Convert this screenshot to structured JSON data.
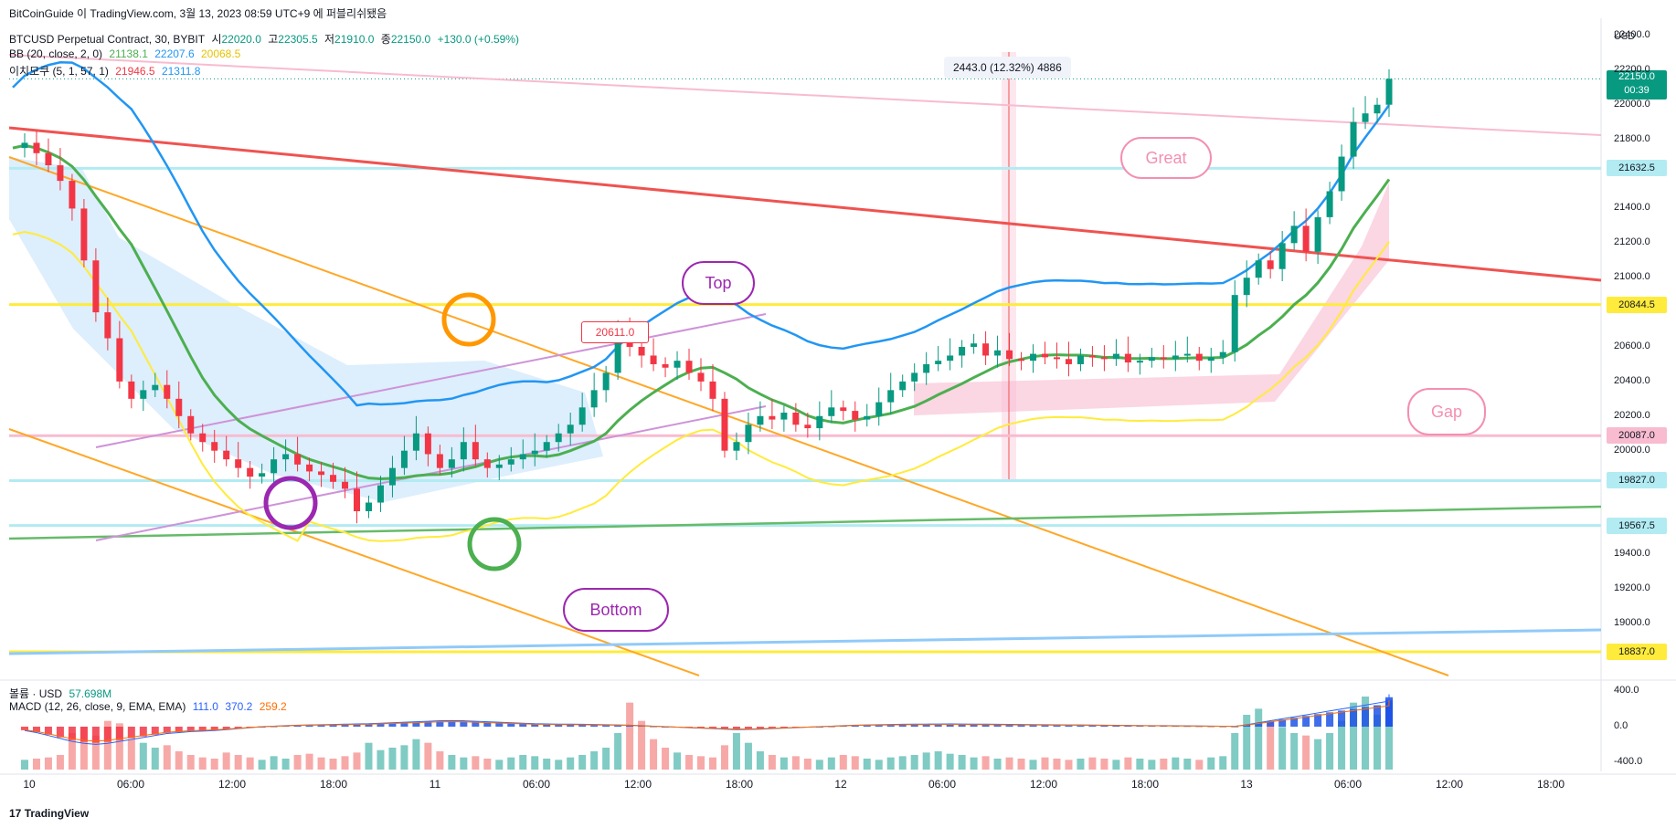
{
  "header": {
    "publish_line": "BitCoinGuide 이 TradingView.com, 3월 13, 2023 08:59 UTC+9 에 퍼블리쉬됐음",
    "symbol_line": {
      "name": "BTCUSD Perpetual Contract, 30, BYBIT",
      "open_label": "시",
      "open": "22020.0",
      "high_label": "고",
      "high": "22305.5",
      "low_label": "저",
      "low": "21910.0",
      "close_label": "종",
      "close": "22150.0",
      "change": "+130.0 (+0.59%)"
    },
    "bb_line": {
      "name": "BB (20, close, 2, 0)",
      "v1": "21138.1",
      "v2": "22207.6",
      "v3": "20068.5"
    },
    "ichimoku_line": {
      "name": "이치모쿠 (5, 1, 57, 1)",
      "v1": "21946.5",
      "v2": "21311.8"
    },
    "volume_line": {
      "name": "볼륨 · USD",
      "value": "57.698M"
    },
    "macd_line": {
      "name": "MACD (12, 26, close, 9, EMA, EMA)",
      "v1": "111.0",
      "v2": "370.2",
      "v3": "259.2"
    }
  },
  "currency": "USD",
  "measure_label": "2443.0 (12.32%) 4886",
  "price_badges": [
    {
      "value": "22150.0",
      "sub": "00:39",
      "bg": "#089981",
      "color": "#ffffff"
    },
    {
      "value": "21632.5",
      "bg": "#b2ebf2",
      "color": "#131722"
    },
    {
      "value": "20844.5",
      "bg": "#ffeb3b",
      "color": "#131722"
    },
    {
      "value": "20087.0",
      "bg": "#f8bbd0",
      "color": "#131722"
    },
    {
      "value": "19827.0",
      "bg": "#b2ebf2",
      "color": "#131722"
    },
    {
      "value": "19567.5",
      "bg": "#b2ebf2",
      "color": "#131722"
    },
    {
      "value": "18837.0",
      "bg": "#ffeb3b",
      "color": "#131722"
    }
  ],
  "annotations": {
    "great": "Great",
    "gap": "Gap",
    "top": "Top",
    "bottom": "Bottom",
    "price_tag": "20611.0"
  },
  "brand": "TradingView",
  "colors": {
    "bb_basis": "#4caf50",
    "bb_upper": "#2196f3",
    "bb_lower": "#ffeb3b",
    "up_candle": "#089981",
    "down_candle": "#f23645",
    "cloud_bear": "#bbdefb",
    "cloud_bull": "#f8bbd0",
    "macd_line": "#2962ff",
    "signal_line": "#ff6d00"
  },
  "chart_data": {
    "type": "candlestick",
    "y_ticks": [
      22400,
      22200,
      22000,
      21800,
      21400,
      21200,
      21000,
      20600,
      20400,
      20200,
      20000,
      19400,
      19200,
      19000
    ],
    "ylim": [
      18700,
      22500
    ],
    "x_ticks": [
      "10",
      "06:00",
      "12:00",
      "18:00",
      "11",
      "06:00",
      "12:00",
      "18:00",
      "12",
      "06:00",
      "12:00",
      "18:00",
      "13",
      "06:00",
      "12:00",
      "18:00"
    ],
    "macd_ticks": [
      "400.0",
      "0.0",
      "-400.0"
    ],
    "macd_ylim": [
      -450,
      450
    ],
    "close_path": [
      21750,
      21780,
      21720,
      21650,
      21560,
      21400,
      21100,
      20800,
      20650,
      20400,
      20300,
      20350,
      20380,
      20300,
      20200,
      20100,
      20050,
      20000,
      19950,
      19900,
      19850,
      19870,
      19950,
      19980,
      19920,
      19880,
      19860,
      19820,
      19780,
      19650,
      19700,
      19800,
      19900,
      20000,
      20100,
      19980,
      19900,
      19950,
      20050,
      19950,
      19900,
      19920,
      19950,
      19980,
      20000,
      20050,
      20100,
      20150,
      20250,
      20350,
      20450,
      20700,
      20600,
      20550,
      20500,
      20480,
      20520,
      20450,
      20400,
      20300,
      20000,
      20050,
      20150,
      20200,
      20180,
      20220,
      20150,
      20130,
      20200,
      20250,
      20230,
      20180,
      20200,
      20280,
      20350,
      20400,
      20450,
      20500,
      20520,
      20550,
      20600,
      20620,
      20550,
      20580,
      20530,
      20520,
      20560,
      20540,
      20530,
      20500,
      20550,
      20540,
      20530,
      20560,
      20510,
      20520,
      20540,
      20530,
      20550,
      20560,
      20520,
      20540,
      20570,
      20900,
      21000,
      21100,
      21050,
      21200,
      21300,
      21150,
      21350,
      21500,
      21700,
      21900,
      21950,
      22000,
      22150
    ],
    "volume": [
      8,
      9,
      10,
      12,
      30,
      35,
      28,
      40,
      38,
      25,
      22,
      18,
      20,
      15,
      12,
      10,
      9,
      14,
      12,
      10,
      8,
      11,
      9,
      12,
      13,
      10,
      9,
      11,
      14,
      22,
      16,
      18,
      20,
      25,
      22,
      15,
      12,
      10,
      11,
      9,
      8,
      10,
      12,
      11,
      9,
      8,
      10,
      12,
      15,
      18,
      30,
      55,
      40,
      25,
      18,
      14,
      12,
      11,
      10,
      20,
      30,
      22,
      15,
      12,
      10,
      11,
      9,
      8,
      10,
      12,
      11,
      9,
      8,
      10,
      11,
      12,
      14,
      15,
      13,
      12,
      10,
      11,
      9,
      10,
      9,
      8,
      10,
      9,
      8,
      9,
      10,
      9,
      8,
      10,
      9,
      8,
      9,
      10,
      9,
      8,
      10,
      11,
      30,
      45,
      50,
      40,
      35,
      30,
      28,
      25,
      30,
      40,
      55,
      60,
      45,
      40,
      35
    ],
    "macd": [
      -40,
      -60,
      -90,
      -120,
      -150,
      -170,
      -180,
      -170,
      -150,
      -130,
      -110,
      -90,
      -70,
      -60,
      -50,
      -45,
      -40,
      -30,
      -20,
      -10,
      0,
      5,
      10,
      15,
      18,
      20,
      22,
      25,
      28,
      30,
      35,
      40,
      45,
      50,
      55,
      60,
      62,
      60,
      55,
      50,
      45,
      40,
      35,
      30,
      28,
      26,
      25,
      24,
      22,
      20,
      18,
      15,
      10,
      5,
      0,
      -5,
      -10,
      -15,
      -20,
      -25,
      -30,
      -28,
      -25,
      -20,
      -15,
      -10,
      -5,
      0,
      5,
      10,
      15,
      18,
      20,
      22,
      24,
      25,
      26,
      27,
      28,
      27,
      26,
      25,
      24,
      23,
      22,
      21,
      20,
      19,
      18,
      17,
      16,
      15,
      14,
      13,
      12,
      11,
      10,
      9,
      8,
      7,
      6,
      5,
      4,
      20,
      40,
      60,
      80,
      100,
      120,
      140,
      160,
      180,
      200,
      220,
      240,
      260,
      280,
      300,
      330
    ]
  }
}
